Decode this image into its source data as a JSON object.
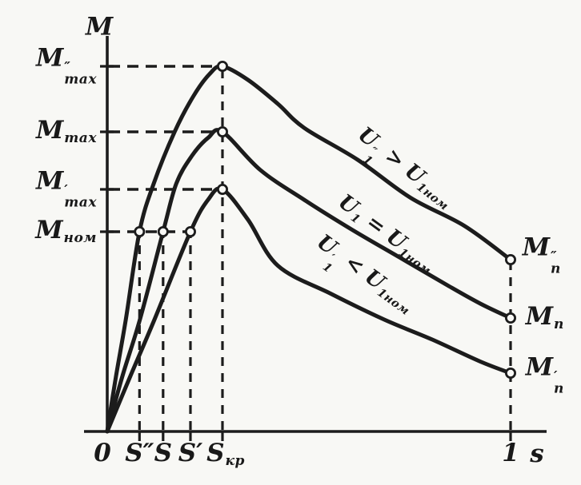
{
  "colors": {
    "ink": "#1c1c1c",
    "paper": "#f8f8f5"
  },
  "chart_data": {
    "type": "line",
    "description": "Torque-slip characteristics M(s) of an induction motor for three stator voltage levels",
    "xlabel": "s",
    "ylabel": "M",
    "origin_label": "0",
    "xlim": [
      0,
      1.1
    ],
    "ylim": [
      0,
      1.98
    ],
    "grid": "dashed guide lines only",
    "x_ticks": [
      {
        "s": 0.08,
        "label": [
          {
            "text": "S″"
          }
        ]
      },
      {
        "s": 0.1385,
        "label": [
          {
            "text": "S"
          }
        ]
      },
      {
        "s": 0.2063,
        "label": [
          {
            "text": "S′"
          }
        ]
      },
      {
        "s": 0.2857,
        "label": [
          {
            "text": "S"
          },
          {
            "sub": "кр"
          }
        ]
      },
      {
        "s": 1.0,
        "label": [
          {
            "text": "1"
          }
        ]
      }
    ],
    "y_ticks": [
      {
        "M": 1.828,
        "label": [
          {
            "text": "M"
          },
          {
            "stack": {
              "sup": "″",
              "sub": "max"
            }
          }
        ]
      },
      {
        "M": 1.5,
        "label": [
          {
            "text": "M"
          },
          {
            "sub": "max"
          }
        ]
      },
      {
        "M": 1.212,
        "label": [
          {
            "text": "M"
          },
          {
            "stack": {
              "sup": "′",
              "sub": "max"
            }
          }
        ]
      },
      {
        "M": 1.0,
        "label": [
          {
            "text": "M"
          },
          {
            "sub": "ном"
          }
        ]
      }
    ],
    "guides": {
      "horizontal": [
        {
          "M": 1.828,
          "s_to": 0.2857
        },
        {
          "M": 1.5,
          "s_to": 0.2857
        },
        {
          "M": 1.212,
          "s_to": 0.2857
        },
        {
          "M": 1.0,
          "s_to": 0.2063
        }
      ],
      "vertical": [
        {
          "s": 0.08,
          "M_to": 1.0
        },
        {
          "s": 0.1385,
          "M_to": 1.0
        },
        {
          "s": 0.2063,
          "M_to": 1.0
        },
        {
          "s": 0.2857,
          "M_to": 1.828
        },
        {
          "s": 1.0,
          "M_to": 0.86
        }
      ]
    },
    "series": [
      {
        "name": "U1-above-nominal",
        "label": [
          {
            "text": "U"
          },
          {
            "stack": {
              "sup": "″",
              "sub": "1"
            }
          },
          {
            "text": " > "
          },
          {
            "text": "U"
          },
          {
            "sub": "1ном"
          }
        ],
        "label_pos": {
          "s": 0.7302,
          "M": 1.296,
          "angle": 38
        },
        "end_label": [
          {
            "text": "M"
          },
          {
            "stack": {
              "sup": "″",
              "sub": "п"
            }
          }
        ],
        "end_label_pos": {
          "s": 1.077,
          "M": 0.88
        },
        "critical_slip": 0.2857,
        "max_torque": 1.828,
        "starting_torque": 0.86,
        "rated_crossing_slip": 0.08,
        "points": [
          [
            0,
            0
          ],
          [
            0.022,
            0.28
          ],
          [
            0.046,
            0.56
          ],
          [
            0.08,
            1.0
          ],
          [
            0.115,
            1.24
          ],
          [
            0.167,
            1.5
          ],
          [
            0.214,
            1.68
          ],
          [
            0.254,
            1.79
          ],
          [
            0.2857,
            1.828
          ],
          [
            0.349,
            1.76
          ],
          [
            0.423,
            1.64
          ],
          [
            0.488,
            1.52
          ],
          [
            0.621,
            1.36
          ],
          [
            0.752,
            1.17
          ],
          [
            0.885,
            1.03
          ],
          [
            1,
            0.86
          ]
        ],
        "markers": [
          [
            0.08,
            1.0
          ],
          [
            0.2857,
            1.828
          ],
          [
            1,
            0.86
          ]
        ]
      },
      {
        "name": "U1-nominal",
        "label": [
          {
            "text": "U"
          },
          {
            "sub": "1"
          },
          {
            "text": " = "
          },
          {
            "text": "U"
          },
          {
            "sub": "1ном"
          }
        ],
        "label_pos": {
          "s": 0.6925,
          "M": 0.988,
          "angle": 36
        },
        "end_label": [
          {
            "text": "M"
          },
          {
            "sub": "п"
          }
        ],
        "end_label_pos": {
          "s": 1.085,
          "M": 0.568
        },
        "critical_slip": 0.2857,
        "max_torque": 1.5,
        "starting_torque": 0.568,
        "rated_crossing_slip": 0.1385,
        "points": [
          [
            0,
            0
          ],
          [
            0.038,
            0.28
          ],
          [
            0.081,
            0.56
          ],
          [
            0.1385,
            1.0
          ],
          [
            0.171,
            1.24
          ],
          [
            0.21,
            1.38
          ],
          [
            0.25,
            1.47
          ],
          [
            0.2857,
            1.5
          ],
          [
            0.379,
            1.31
          ],
          [
            0.488,
            1.16
          ],
          [
            0.607,
            1.01
          ],
          [
            0.726,
            0.87
          ],
          [
            0.845,
            0.73
          ],
          [
            0.925,
            0.64
          ],
          [
            1,
            0.568
          ]
        ],
        "markers": [
          [
            0.1385,
            1.0
          ],
          [
            0.2857,
            1.5
          ],
          [
            1,
            0.568
          ]
        ]
      },
      {
        "name": "U1-below-nominal",
        "label": [
          {
            "text": "U"
          },
          {
            "stack": {
              "sup": "′",
              "sub": "1"
            }
          },
          {
            "text": " < "
          },
          {
            "text": "U"
          },
          {
            "sub": "1ном"
          }
        ],
        "label_pos": {
          "s": 0.631,
          "M": 0.764,
          "angle": 36
        },
        "end_label": [
          {
            "text": "M"
          },
          {
            "stack": {
              "sup": "′",
              "sub": "п"
            }
          }
        ],
        "end_label_pos": {
          "s": 1.085,
          "M": 0.28
        },
        "critical_slip": 0.2857,
        "max_torque": 1.212,
        "starting_torque": 0.292,
        "rated_crossing_slip": 0.2063,
        "points": [
          [
            0,
            0
          ],
          [
            0.058,
            0.28
          ],
          [
            0.117,
            0.56
          ],
          [
            0.2063,
            1.0
          ],
          [
            0.25,
            1.16
          ],
          [
            0.2857,
            1.212
          ],
          [
            0.349,
            1.06
          ],
          [
            0.423,
            0.83
          ],
          [
            0.554,
            0.69
          ],
          [
            0.687,
            0.56
          ],
          [
            0.806,
            0.46
          ],
          [
            0.925,
            0.35
          ],
          [
            1,
            0.292
          ]
        ],
        "markers": [
          [
            0.2063,
            1.0
          ],
          [
            0.2857,
            1.212
          ],
          [
            1,
            0.292
          ]
        ]
      }
    ]
  }
}
